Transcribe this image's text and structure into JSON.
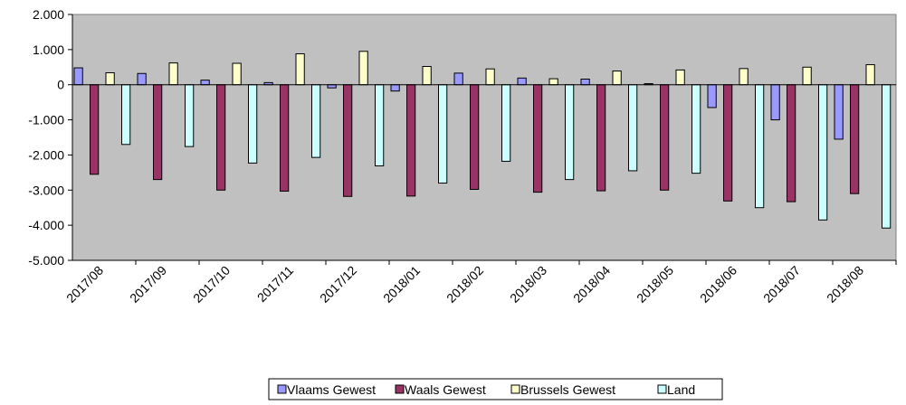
{
  "chart_data": {
    "type": "bar",
    "categories": [
      "2017/08",
      "2017/09",
      "2017/10",
      "2017/11",
      "2017/12",
      "2018/01",
      "2018/02",
      "2018/03",
      "2018/04",
      "2018/05",
      "2018/06",
      "2018/07",
      "2018/08"
    ],
    "series": [
      {
        "name": "Vlaams Gewest",
        "color": "#9999ff",
        "values": [
          480,
          320,
          130,
          60,
          -90,
          -180,
          330,
          190,
          160,
          30,
          -650,
          -1000,
          -1550
        ]
      },
      {
        "name": "Waals Gewest",
        "color": "#993366",
        "values": [
          -2550,
          -2700,
          -3000,
          -3030,
          -3180,
          -3170,
          -2980,
          -3060,
          -3020,
          -3000,
          -3310,
          -3330,
          -3100
        ]
      },
      {
        "name": "Brussels Gewest",
        "color": "#ffffcc",
        "values": [
          340,
          620,
          610,
          880,
          950,
          520,
          450,
          170,
          390,
          420,
          460,
          500,
          570
        ]
      },
      {
        "name": "Land",
        "color": "#ccffff",
        "values": [
          -1700,
          -1760,
          -2230,
          -2070,
          -2310,
          -2800,
          -2180,
          -2700,
          -2450,
          -2520,
          -3500,
          -3850,
          -4080
        ]
      }
    ],
    "ylim": [
      -5000,
      2000
    ],
    "yticks": [
      2000,
      1000,
      0,
      -1000,
      -2000,
      -3000,
      -4000,
      -5000
    ],
    "ytick_labels": [
      "2.000",
      "1.000",
      "0",
      "-1.000",
      "-2.000",
      "-3.000",
      "-4.000",
      "-5.000"
    ],
    "plot_background": "#c0c0c0",
    "grid": false,
    "legend_position": "bottom-center",
    "title": "",
    "xlabel": "",
    "ylabel": ""
  }
}
